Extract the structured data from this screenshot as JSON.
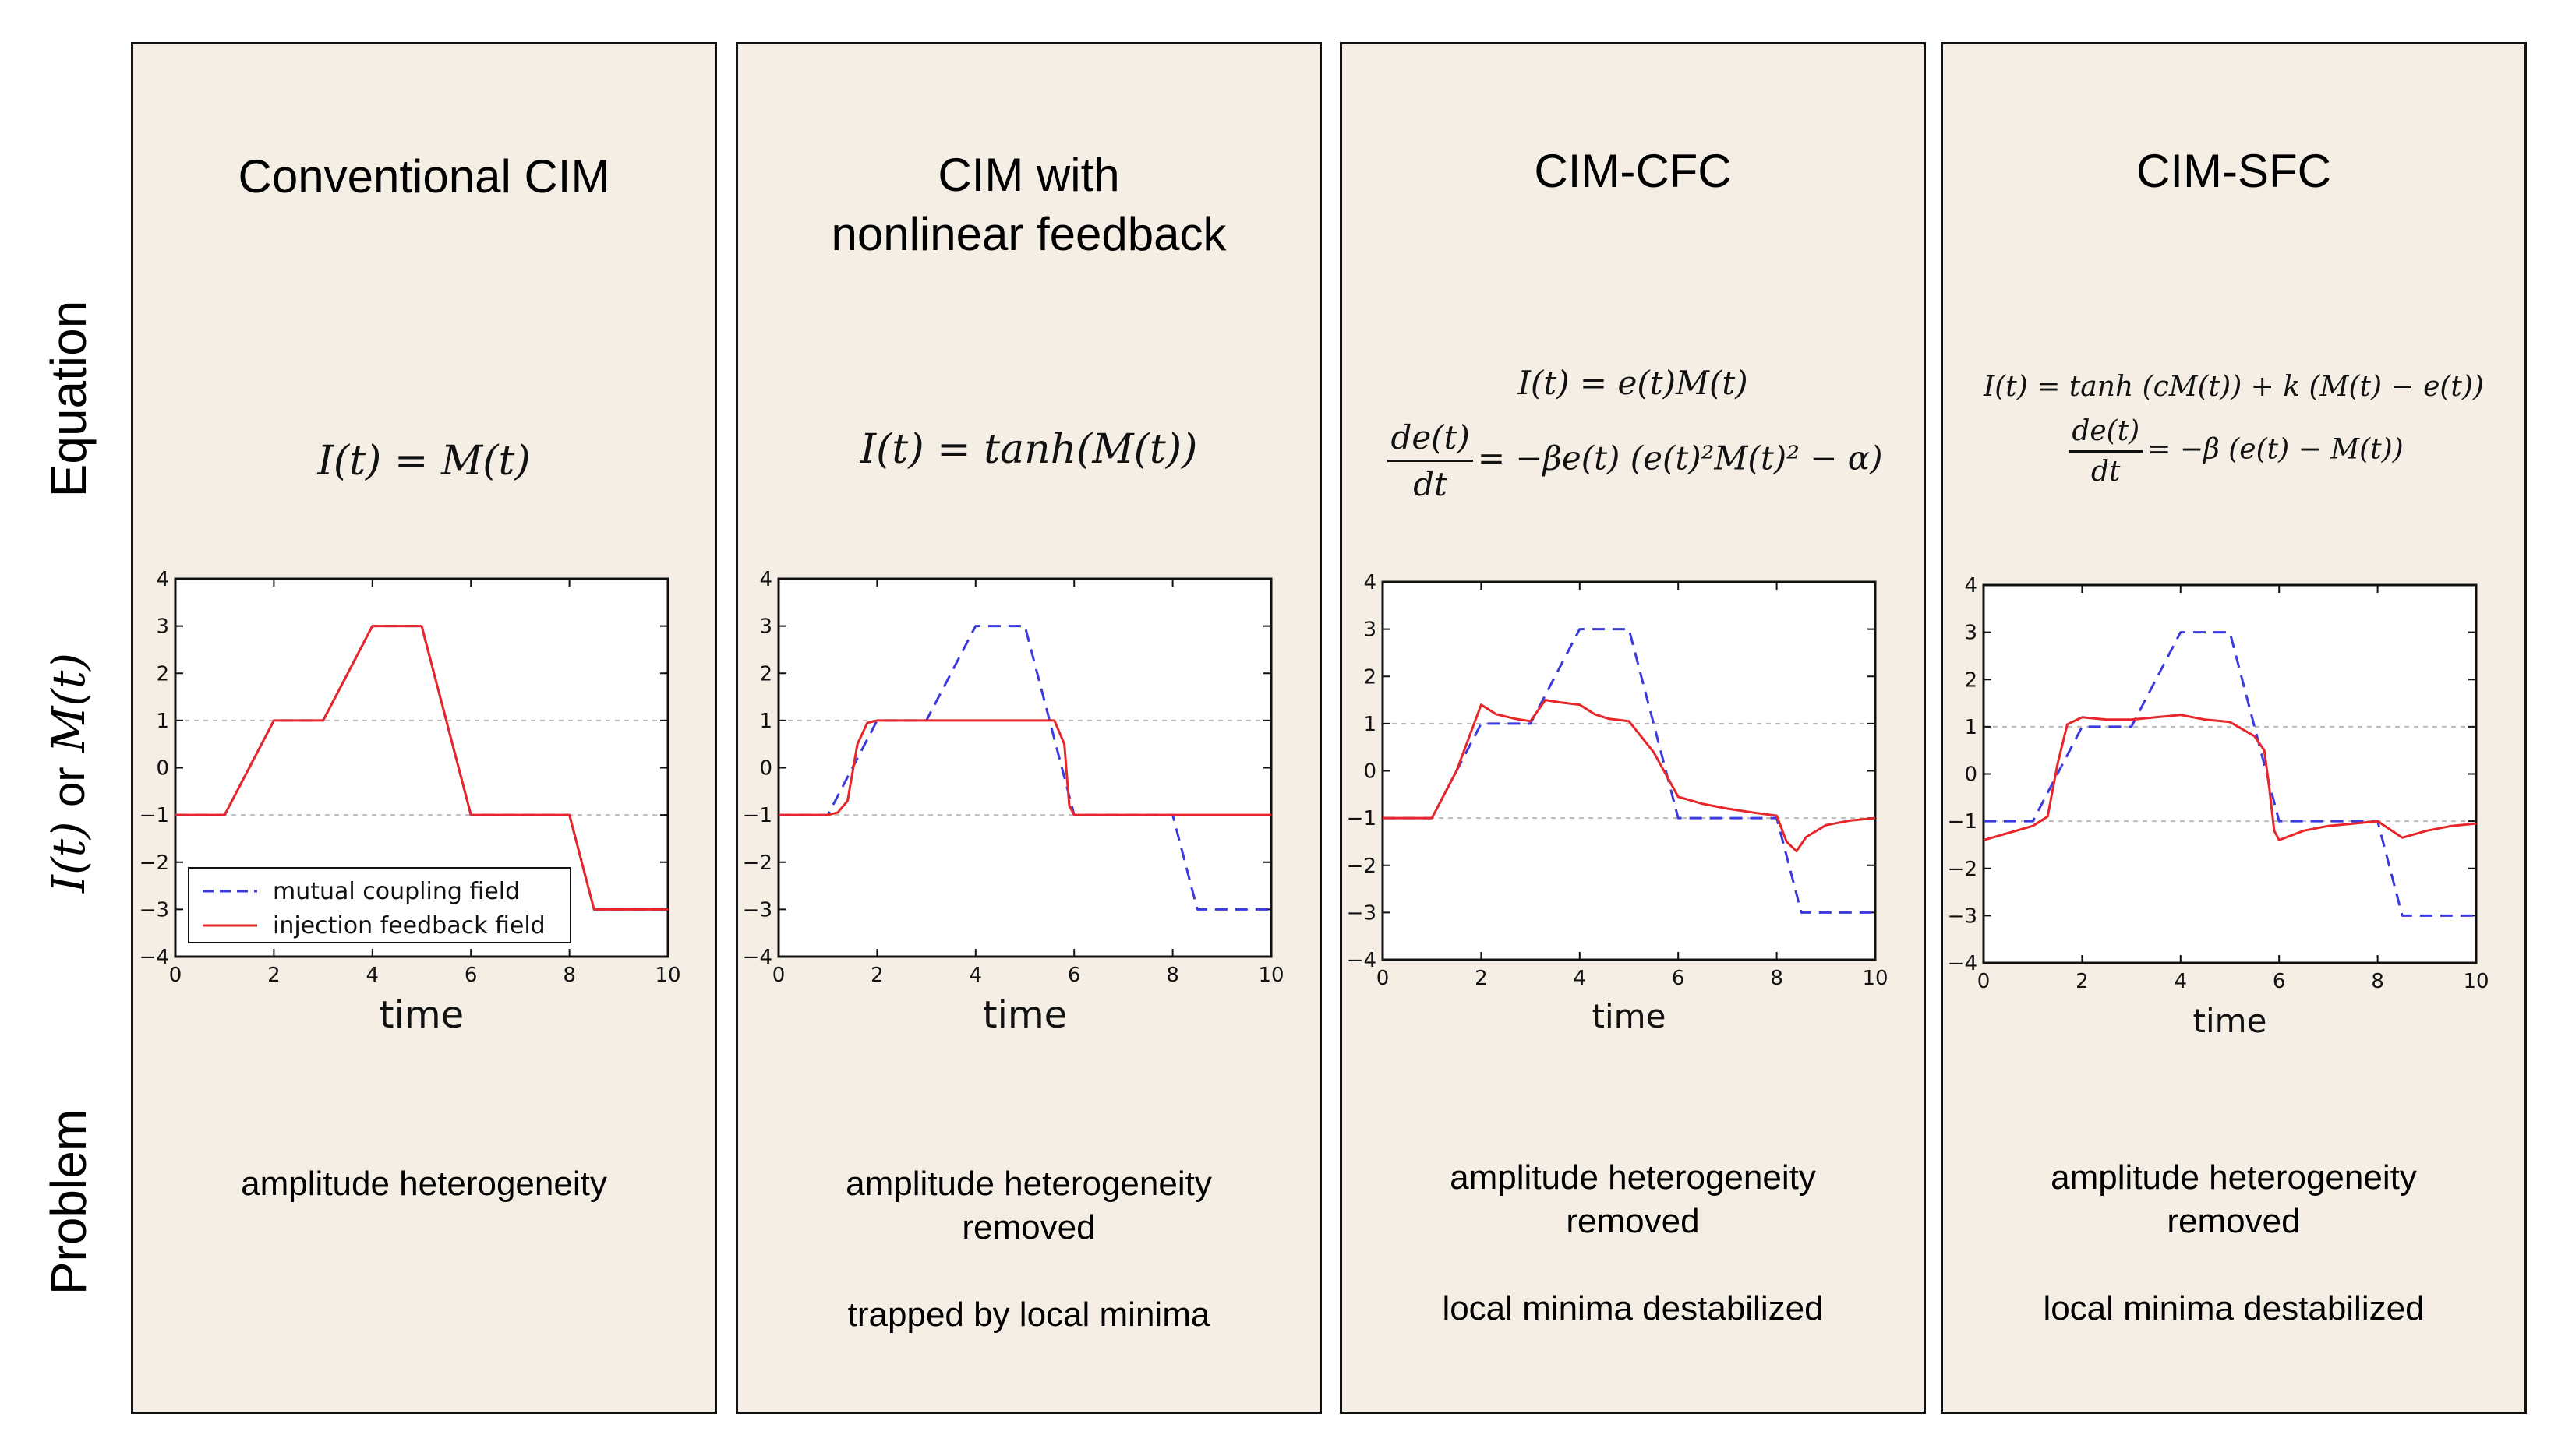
{
  "row_labels": {
    "equation": "Equation",
    "axis": {
      "math_i": "I(t)",
      "word": "or",
      "math_m": "M(t)"
    },
    "problem": "Problem"
  },
  "colors": {
    "panel_bg": "#f4eee4",
    "coupling": "#3a3adf",
    "feedback": "#e8262a",
    "grid": "#bbbbbb"
  },
  "panels": [
    {
      "title_lines": [
        "Conventional CIM"
      ],
      "equations": [
        {
          "type": "text",
          "text": "I(t) = M(t)"
        }
      ],
      "problems": [
        "amplitude heterogeneity"
      ],
      "xlabel": "time",
      "legend": [
        "mutual coupling field",
        "injection feedback field"
      ]
    },
    {
      "title_lines": [
        "CIM with",
        "nonlinear feedback"
      ],
      "equations": [
        {
          "type": "text",
          "text": "I(t) = tanh(M(t))"
        }
      ],
      "problems": [
        "amplitude heterogeneity",
        "removed",
        "",
        "trapped by local minima"
      ],
      "xlabel": "time"
    },
    {
      "title_lines": [
        "CIM-CFC"
      ],
      "equations": [
        {
          "type": "text",
          "text": "I(t) = e(t)M(t)"
        },
        {
          "type": "ode",
          "num": "de(t)",
          "den": "dt",
          "rhs": "= −βe(t) (e(t)²M(t)² − α)"
        }
      ],
      "problems": [
        "amplitude heterogeneity",
        "removed",
        "",
        "local minima destabilized"
      ],
      "xlabel": "time"
    },
    {
      "title_lines": [
        "CIM-SFC"
      ],
      "equations": [
        {
          "type": "text",
          "text": "I(t) = tanh (cM(t)) + k (M(t) − e(t))"
        },
        {
          "type": "ode",
          "num": "de(t)",
          "den": "dt",
          "rhs": "= −β (e(t) − M(t))"
        }
      ],
      "problems": [
        "amplitude heterogeneity",
        "removed",
        "",
        "local minima destabilized"
      ],
      "xlabel": "time"
    }
  ],
  "chart_data": [
    {
      "type": "line",
      "xlim": [
        0,
        10
      ],
      "ylim": [
        -4,
        4
      ],
      "xticks": [
        0,
        2,
        4,
        6,
        8,
        10
      ],
      "yticks": [
        4,
        3,
        2,
        1,
        0,
        -1,
        -2,
        -3,
        -4
      ],
      "xlabel": "time",
      "ylabel": "I(t) or M(t)",
      "hlines": [
        1,
        -1
      ],
      "legend_loc": "lower-left",
      "series": [
        {
          "name": "mutual coupling field",
          "style": "dashed",
          "x": [
            0,
            1,
            2,
            3,
            4,
            5,
            6,
            7,
            8,
            8.5,
            10
          ],
          "y": [
            -1,
            -1,
            1,
            1,
            3,
            3,
            -1,
            -1,
            -1,
            -3,
            -3
          ]
        },
        {
          "name": "injection feedback field",
          "style": "solid",
          "x": [
            0,
            1,
            2,
            3,
            4,
            5,
            6,
            7,
            8,
            8.5,
            10
          ],
          "y": [
            -1,
            -1,
            1,
            1,
            3,
            3,
            -1,
            -1,
            -1,
            -3,
            -3
          ]
        }
      ]
    },
    {
      "type": "line",
      "xlim": [
        0,
        10
      ],
      "ylim": [
        -4,
        4
      ],
      "xticks": [
        0,
        2,
        4,
        6,
        8,
        10
      ],
      "yticks": [
        4,
        3,
        2,
        1,
        0,
        -1,
        -2,
        -3,
        -4
      ],
      "xlabel": "time",
      "ylabel": "I(t) or M(t)",
      "hlines": [
        1,
        -1
      ],
      "series": [
        {
          "name": "mutual coupling field",
          "style": "dashed",
          "x": [
            0,
            1,
            2,
            3,
            4,
            5,
            6,
            7,
            8,
            8.5,
            10
          ],
          "y": [
            -1,
            -1,
            1,
            1,
            3,
            3,
            -1,
            -1,
            -1,
            -3,
            -3
          ]
        },
        {
          "name": "injection feedback field",
          "style": "solid",
          "x": [
            0,
            1.0,
            1.2,
            1.4,
            1.6,
            1.8,
            2.0,
            3,
            4,
            5,
            5.6,
            5.8,
            5.9,
            6.0,
            7,
            8,
            8.5,
            10
          ],
          "y": [
            -1,
            -1,
            -0.95,
            -0.7,
            0.5,
            0.95,
            1,
            1,
            1,
            1,
            1,
            0.5,
            -0.8,
            -1,
            -1,
            -1,
            -1,
            -1
          ]
        }
      ]
    },
    {
      "type": "line",
      "xlim": [
        0,
        10
      ],
      "ylim": [
        -4,
        4
      ],
      "xticks": [
        0,
        2,
        4,
        6,
        8,
        10
      ],
      "yticks": [
        4,
        3,
        2,
        1,
        0,
        -1,
        -2,
        -3,
        -4
      ],
      "xlabel": "time",
      "ylabel": "I(t) or M(t)",
      "hlines": [
        1,
        -1
      ],
      "series": [
        {
          "name": "mutual coupling field",
          "style": "dashed",
          "x": [
            0,
            1,
            2,
            3,
            4,
            5,
            6,
            7,
            8,
            8.5,
            10
          ],
          "y": [
            -1,
            -1,
            1,
            1,
            3,
            3,
            -1,
            -1,
            -1,
            -3,
            -3
          ]
        },
        {
          "name": "injection feedback field",
          "style": "solid",
          "x": [
            0,
            1,
            1.5,
            2,
            2.3,
            2.7,
            3,
            3.3,
            3.6,
            4,
            4.3,
            4.6,
            5,
            5.5,
            6,
            6.5,
            7,
            7.5,
            8,
            8.2,
            8.4,
            8.6,
            9,
            9.5,
            10
          ],
          "y": [
            -1,
            -1,
            0,
            1.4,
            1.2,
            1.1,
            1.05,
            1.5,
            1.45,
            1.4,
            1.2,
            1.1,
            1.05,
            0.4,
            -0.55,
            -0.7,
            -0.8,
            -0.88,
            -0.95,
            -1.5,
            -1.7,
            -1.4,
            -1.15,
            -1.05,
            -1.0
          ]
        }
      ]
    },
    {
      "type": "line",
      "xlim": [
        0,
        10
      ],
      "ylim": [
        -4,
        4
      ],
      "xticks": [
        0,
        2,
        4,
        6,
        8,
        10
      ],
      "yticks": [
        4,
        3,
        2,
        1,
        0,
        -1,
        -2,
        -3,
        -4
      ],
      "xlabel": "time",
      "ylabel": "I(t) or M(t)",
      "hlines": [
        1,
        -1
      ],
      "series": [
        {
          "name": "mutual coupling field",
          "style": "dashed",
          "x": [
            0,
            1,
            2,
            3,
            4,
            5,
            6,
            7,
            8,
            8.5,
            10
          ],
          "y": [
            -1,
            -1,
            1,
            1,
            3,
            3,
            -1,
            -1,
            -1,
            -3,
            -3
          ]
        },
        {
          "name": "injection feedback field",
          "style": "solid",
          "x": [
            0,
            0.5,
            1,
            1.3,
            1.5,
            1.7,
            2,
            2.5,
            3,
            3.5,
            4,
            4.5,
            5,
            5.5,
            5.7,
            5.8,
            5.9,
            6,
            6.5,
            7,
            7.5,
            8,
            8.5,
            9,
            9.5,
            10
          ],
          "y": [
            -1.4,
            -1.25,
            -1.1,
            -0.9,
            0.2,
            1.05,
            1.2,
            1.15,
            1.15,
            1.2,
            1.25,
            1.15,
            1.1,
            0.8,
            0.5,
            -0.3,
            -1.2,
            -1.4,
            -1.2,
            -1.1,
            -1.05,
            -1.0,
            -1.35,
            -1.2,
            -1.1,
            -1.05
          ]
        }
      ]
    }
  ]
}
